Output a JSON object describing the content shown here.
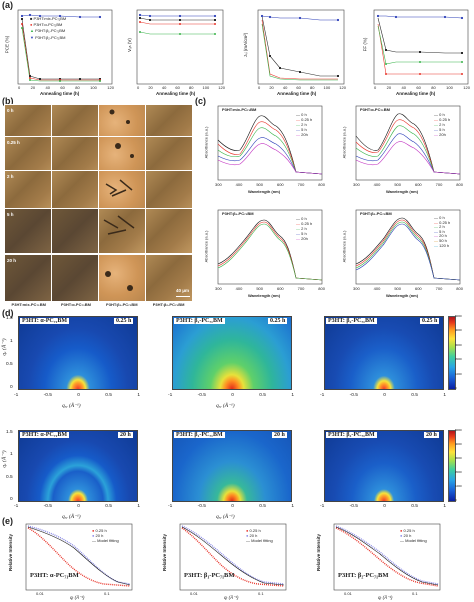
{
  "panels": {
    "a": "(a)",
    "b": "(b)",
    "c": "(c)",
    "d": "(d)",
    "e": "(e)"
  },
  "a": {
    "xlabel": "Annealing time (h)",
    "pce": {
      "ylabel": "PCE (%)",
      "yticks": [
        "0",
        "1",
        "2",
        "3",
        "4",
        "5"
      ],
      "xticks": [
        "0",
        "20",
        "40",
        "60",
        "80",
        "100",
        "120"
      ]
    },
    "voc": {
      "ylabel": "Vₒₕ (V)",
      "yticks": [
        "0.6",
        "0.5",
        "0.4",
        "0.3"
      ],
      "xticks": [
        "0",
        "20",
        "40",
        "60",
        "80",
        "100",
        "120"
      ]
    },
    "jsc": {
      "ylabel": "Jₛⱼ (mA/cm²)",
      "yticks": [
        "0",
        "5",
        "10",
        "15",
        "20"
      ],
      "xticks": [
        "0",
        "20",
        "40",
        "60",
        "80",
        "100",
        "120"
      ]
    },
    "ff": {
      "ylabel": "FF (%)",
      "yticks": [
        "20",
        "30",
        "40",
        "50",
        "60",
        "70"
      ],
      "xticks": [
        "0",
        "20",
        "40",
        "60",
        "80",
        "100",
        "120"
      ]
    },
    "legend": [
      "P3HT:mix-PC₇₁BM",
      "P3HT:α-PC₇₁BM",
      "P3HT:β₁-PC₇₁BM",
      "P3HT:β₂-PC₇₁BM"
    ]
  },
  "b": {
    "rows": [
      "0 h",
      "0.25 h",
      "2 h",
      "5 h",
      "20 h"
    ],
    "cols": [
      "P3HT:mix-PC₇₁BM",
      "P3HT:α-PC₇₁BM",
      "P3HT:β₁-PC₇₁BM",
      "P3HT:β₂-PC₇₁BM"
    ],
    "scale": "40 μm"
  },
  "c": {
    "ylabel": "Absorbance (a.u.)",
    "xlabel": "Wavelength (nm)",
    "xticks": [
      "300",
      "400",
      "500",
      "600",
      "700",
      "800"
    ],
    "plots": [
      {
        "title": "P3HT:mix-PC₇₁BM",
        "legend": [
          "0 h",
          "0.25 h",
          "2 h",
          "5 h",
          "20h"
        ]
      },
      {
        "title": "P3HT:α-PC₇₁BM",
        "legend": [
          "0 h",
          "0.25 h",
          "2 h",
          "5 h",
          "20h"
        ]
      },
      {
        "title": "P3HT:β₁-PC₇₁BM",
        "legend": [
          "0 h",
          "0.25 h",
          "2 h",
          "5 h",
          "20h"
        ]
      },
      {
        "title": "P3HT:β₂-PC₇₁BM",
        "legend": [
          "0 h",
          "0.25 h",
          "2 h",
          "5 h",
          "20 h",
          "50 h",
          "120 h"
        ]
      }
    ]
  },
  "d": {
    "ylabel": "qₓ (Å⁻¹)",
    "xlabel": "qₓᵧ (Å⁻¹)",
    "xticks": [
      "-1",
      "-0.5",
      "0",
      "0.5",
      "1"
    ],
    "yticks": [
      "1.5",
      "1",
      "0.5",
      "0"
    ],
    "panels": [
      {
        "title": "P3HT: α-PC₇₁BM",
        "time": "0.25 h"
      },
      {
        "title": "P3HT: β₁-PC₇₁BM",
        "time": "0.25 h"
      },
      {
        "title": "P3HT: β₂-PC₇₁BM",
        "time": "0.25 h"
      },
      {
        "title": "P3HT: α-PC₇₁BM",
        "time": "20 h"
      },
      {
        "title": "P3HT: β₁-PC₇₁BM",
        "time": "20 h"
      },
      {
        "title": "P3HT: β₂-PC₇₁BM",
        "time": "20 h"
      }
    ],
    "colorbar_ticks": [
      "5000",
      "4500",
      "4000",
      "3500",
      "3000",
      "2500",
      "2000",
      "1500",
      "1000",
      "500",
      "0"
    ]
  },
  "e": {
    "ylabel": "Relative Intensity",
    "xlabel": "qᵣ (Å⁻¹)",
    "xticks": [
      "0.01",
      "0.1"
    ],
    "legend": [
      "0.25 h",
      "20 h",
      "Model fitting"
    ],
    "titles": [
      "P3HT: α-PC₇₁BM",
      "P3HT: β₁-PC₇₁BM",
      "P3HT: β₂-PC₇₁BM"
    ]
  },
  "colors": {
    "mix": "#2b2b2b",
    "alpha": "#e8352b",
    "beta1": "#39b34a",
    "beta2": "#2c3fb8"
  }
}
